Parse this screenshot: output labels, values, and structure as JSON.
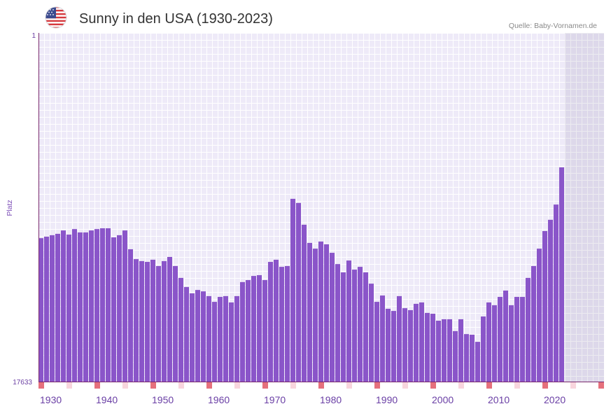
{
  "header": {
    "flag_icon": "us-flag-icon"
  },
  "chart_data": {
    "type": "bar",
    "title": "Sunny in den USA (1930-2023)",
    "source": "Quelle: Baby-Vornamen.de",
    "ylabel": "Platz",
    "y_tick_labels": [
      "1",
      "17633"
    ],
    "ylim": [
      1,
      17633
    ],
    "y_inverted": true,
    "xlim": [
      1930,
      2030
    ],
    "x_tick_labels": [
      "1930",
      "1940",
      "1950",
      "1960",
      "1970",
      "1980",
      "1990",
      "2000",
      "2010",
      "2020"
    ],
    "shaded_years": [
      2024,
      2030
    ],
    "grid": true,
    "bar_color": "#8a55c9",
    "axis_color": "#7a2a6e",
    "major_marker_color": "#e5707c",
    "minor_marker_color": "#f8d5dd",
    "years": [
      1930,
      1931,
      1932,
      1933,
      1934,
      1935,
      1936,
      1937,
      1938,
      1939,
      1940,
      1941,
      1942,
      1943,
      1944,
      1945,
      1946,
      1947,
      1948,
      1949,
      1950,
      1951,
      1952,
      1953,
      1954,
      1955,
      1956,
      1957,
      1958,
      1959,
      1960,
      1961,
      1962,
      1963,
      1964,
      1965,
      1966,
      1967,
      1968,
      1969,
      1970,
      1971,
      1972,
      1973,
      1974,
      1975,
      1976,
      1977,
      1978,
      1979,
      1980,
      1981,
      1982,
      1983,
      1984,
      1985,
      1986,
      1987,
      1988,
      1989,
      1990,
      1991,
      1992,
      1993,
      1994,
      1995,
      1996,
      1997,
      1998,
      1999,
      2000,
      2001,
      2002,
      2003,
      2004,
      2005,
      2006,
      2007,
      2008,
      2009,
      2010,
      2011,
      2012,
      2013,
      2014,
      2015,
      2016,
      2017,
      2018,
      2019,
      2020,
      2021,
      2022,
      2023
    ],
    "values": [
      10380,
      10300,
      10230,
      10160,
      9990,
      10200,
      9920,
      10090,
      10090,
      9990,
      9920,
      9880,
      9880,
      10340,
      10230,
      9990,
      10940,
      11440,
      11540,
      11580,
      11470,
      11790,
      11540,
      11330,
      11790,
      12390,
      12850,
      13170,
      13000,
      13070,
      13310,
      13600,
      13350,
      13310,
      13630,
      13310,
      12600,
      12500,
      12290,
      12250,
      12500,
      11580,
      11470,
      11830,
      11790,
      8390,
      8600,
      9700,
      10620,
      10910,
      10550,
      10690,
      11120,
      11690,
      12110,
      11510,
      11970,
      11830,
      12110,
      12680,
      13600,
      13280,
      13950,
      14060,
      13310,
      13920,
      14020,
      13700,
      13630,
      14160,
      14200,
      14550,
      14480,
      14480,
      15080,
      14480,
      15230,
      15260,
      15620,
      14340,
      13630,
      13770,
      13350,
      13030,
      13770,
      13350,
      13350,
      12390,
      11790,
      10910,
      10020,
      9450,
      8680,
      6800
    ]
  }
}
